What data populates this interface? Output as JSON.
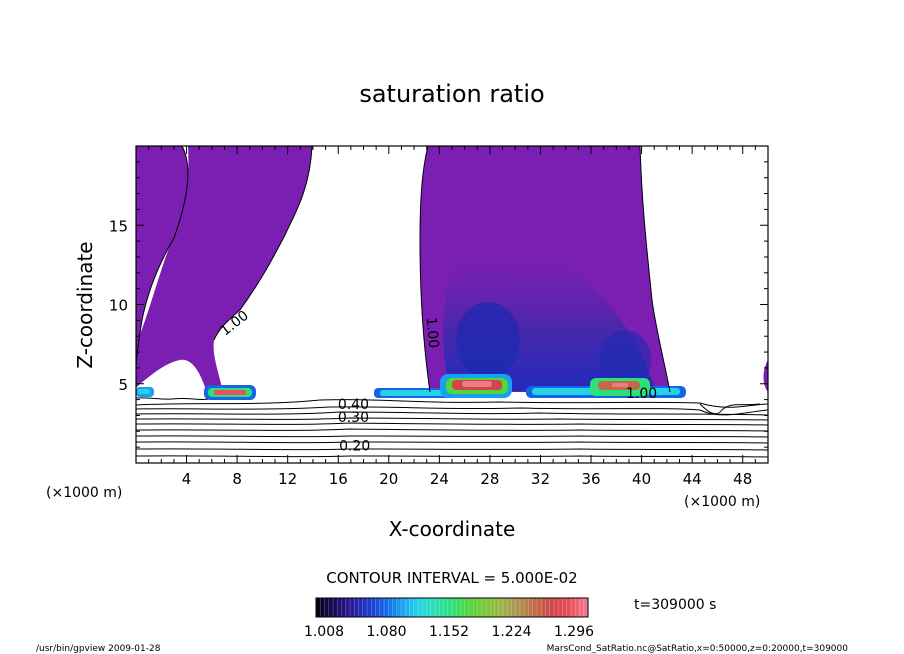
{
  "chart_data": {
    "type": "heatmap",
    "title": "saturation ratio",
    "xlabel": "X-coordinate",
    "ylabel": "Z-coordinate",
    "x_unit_left": "(×1000 m)",
    "x_unit_right": "(×1000 m)",
    "xlim": [
      0,
      50
    ],
    "ylim": [
      0,
      20
    ],
    "x_ticks": [
      {
        "value": 4,
        "label": "4"
      },
      {
        "value": 8,
        "label": "8"
      },
      {
        "value": 12,
        "label": "12"
      },
      {
        "value": 16,
        "label": "16"
      },
      {
        "value": 20,
        "label": "20"
      },
      {
        "value": 24,
        "label": "24"
      },
      {
        "value": 28,
        "label": "28"
      },
      {
        "value": 32,
        "label": "32"
      },
      {
        "value": 36,
        "label": "36"
      },
      {
        "value": 40,
        "label": "40"
      },
      {
        "value": 44,
        "label": "44"
      },
      {
        "value": 48,
        "label": "48"
      }
    ],
    "y_ticks": [
      {
        "value": 5,
        "label": "5"
      },
      {
        "value": 10,
        "label": "10"
      },
      {
        "value": 15,
        "label": "15"
      }
    ],
    "contour_labels": [
      {
        "x": 8.0,
        "y": 8.6,
        "text": "1.00",
        "angle": -38
      },
      {
        "x": 23.1,
        "y": 8.2,
        "text": "1.00",
        "angle": 85
      },
      {
        "x": 40.0,
        "y": 4.1,
        "text": "1.00",
        "angle": 0
      },
      {
        "x": 17.2,
        "y": 3.4,
        "text": "0.40",
        "angle": 0
      },
      {
        "x": 17.2,
        "y": 2.6,
        "text": "0.30",
        "angle": 0
      },
      {
        "x": 17.3,
        "y": 0.8,
        "text": "0.20",
        "angle": 0
      }
    ],
    "contour_interval_text": "CONTOUR INTERVAL = 5.000E-02",
    "time_text": "t=309000  s",
    "colorbar": {
      "min": 1.008,
      "max": 1.296,
      "tick_labels": [
        "1.008",
        "1.080",
        "1.152",
        "1.224",
        "1.296"
      ],
      "colors": [
        "#0a0018",
        "#1a0a5a",
        "#2c1a9a",
        "#1c38c8",
        "#1466e6",
        "#1aa0f0",
        "#26d2e8",
        "#28e0b4",
        "#2ee07a",
        "#52d63e",
        "#7cc83a",
        "#9cb648",
        "#b09050",
        "#c06a48",
        "#d2464a",
        "#e8505e",
        "#f07a8a"
      ]
    },
    "regions": {
      "subsat_fill": "#7b1fb3",
      "deep_fill": "#5a1aa8",
      "core_fill": "#2a2aa0"
    }
  },
  "footer": {
    "left": "/usr/bin/gpview  2009-01-28",
    "right": "MarsCond_SatRatio.nc@SatRatio,x=0:50000,z=0:20000,t=309000"
  }
}
